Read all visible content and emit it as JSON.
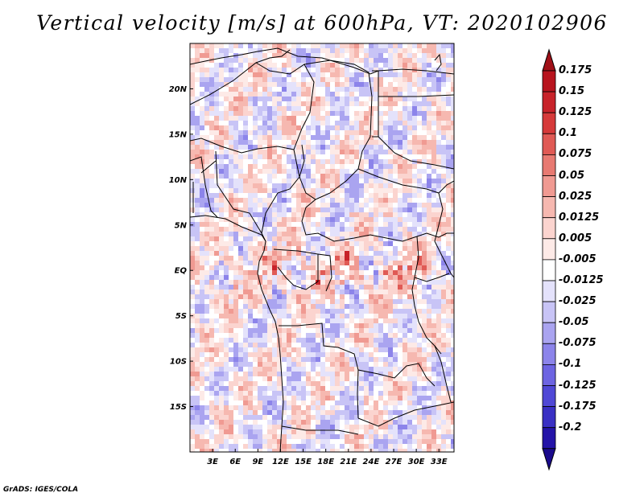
{
  "title": "Vertical velocity [m/s] at 600hPa, VT: 2020102906",
  "credit": "GrADS: IGES/COLA",
  "map": {
    "lon_range": [
      0,
      35
    ],
    "lat_range": [
      -20,
      25
    ],
    "lat_ticks": [
      {
        "value": 20,
        "label": "20N"
      },
      {
        "value": 15,
        "label": "15N"
      },
      {
        "value": 10,
        "label": "10N"
      },
      {
        "value": 5,
        "label": "5N"
      },
      {
        "value": 0,
        "label": "EQ"
      },
      {
        "value": -5,
        "label": "5S"
      },
      {
        "value": -10,
        "label": "10S"
      },
      {
        "value": -15,
        "label": "15S"
      }
    ],
    "lon_ticks": [
      {
        "value": 3,
        "label": "3E"
      },
      {
        "value": 6,
        "label": "6E"
      },
      {
        "value": 9,
        "label": "9E"
      },
      {
        "value": 12,
        "label": "12E"
      },
      {
        "value": 15,
        "label": "15E"
      },
      {
        "value": 18,
        "label": "18E"
      },
      {
        "value": 21,
        "label": "21E"
      },
      {
        "value": 24,
        "label": "24E"
      },
      {
        "value": 27,
        "label": "27E"
      },
      {
        "value": 30,
        "label": "30E"
      },
      {
        "value": 33,
        "label": "33E"
      }
    ]
  },
  "colorbar": {
    "levels": [
      {
        "label": "0.175",
        "color": "#b8141e"
      },
      {
        "label": "0.15",
        "color": "#c8232a"
      },
      {
        "label": "0.125",
        "color": "#d63a3a"
      },
      {
        "label": "0.1",
        "color": "#e05a55"
      },
      {
        "label": "0.075",
        "color": "#e87a72"
      },
      {
        "label": "0.05",
        "color": "#f09a92"
      },
      {
        "label": "0.025",
        "color": "#f6b8b0"
      },
      {
        "label": "0.0125",
        "color": "#fbd4cf"
      },
      {
        "label": "0.005",
        "color": "#fdeae7"
      },
      {
        "label": "-0.005",
        "color": "#ffffff"
      },
      {
        "label": "-0.0125",
        "color": "#e4e2fb"
      },
      {
        "label": "-0.025",
        "color": "#c8c4f6"
      },
      {
        "label": "-0.05",
        "color": "#aaa4f0"
      },
      {
        "label": "-0.075",
        "color": "#8c84ea"
      },
      {
        "label": "-0.1",
        "color": "#6d64e2"
      },
      {
        "label": "-0.125",
        "color": "#5048d6"
      },
      {
        "label": "-0.175",
        "color": "#3a30c4"
      },
      {
        "label": "-0.2",
        "color": "#2414a8"
      }
    ],
    "top_color": "#a01018",
    "bottom_color": "#1a0a8c"
  }
}
